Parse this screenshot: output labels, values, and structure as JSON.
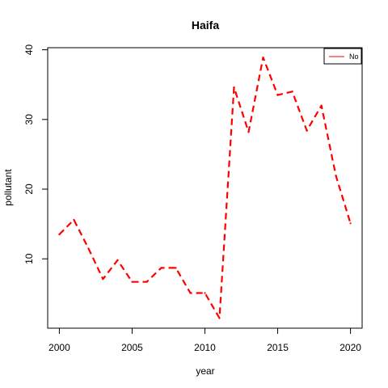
{
  "chart_data": {
    "type": "line",
    "title": "Haifa",
    "xlabel": "year",
    "ylabel": "pollutant",
    "xlim": [
      1999.2,
      2020.8
    ],
    "ylim": [
      0.05,
      40.3
    ],
    "x_ticks": [
      2000,
      2005,
      2010,
      2015,
      2020
    ],
    "y_ticks": [
      10,
      20,
      30,
      40
    ],
    "grid": false,
    "legend_position": "top-right",
    "series": [
      {
        "name": "No",
        "color": "#ff0000",
        "line_style": "dashed",
        "x": [
          2000,
          2001,
          2002,
          2003,
          2004,
          2005,
          2006,
          2007,
          2008,
          2009,
          2010,
          2011,
          2012,
          2013,
          2014,
          2015,
          2016,
          2017,
          2018,
          2019,
          2020
        ],
        "y": [
          13.5,
          15.6,
          11.5,
          7.1,
          9.8,
          6.7,
          6.7,
          8.7,
          8.7,
          5.1,
          5.1,
          1.5,
          34.6,
          28.2,
          38.9,
          33.5,
          34.0,
          28.4,
          32.0,
          21.9,
          15.1
        ]
      }
    ]
  }
}
